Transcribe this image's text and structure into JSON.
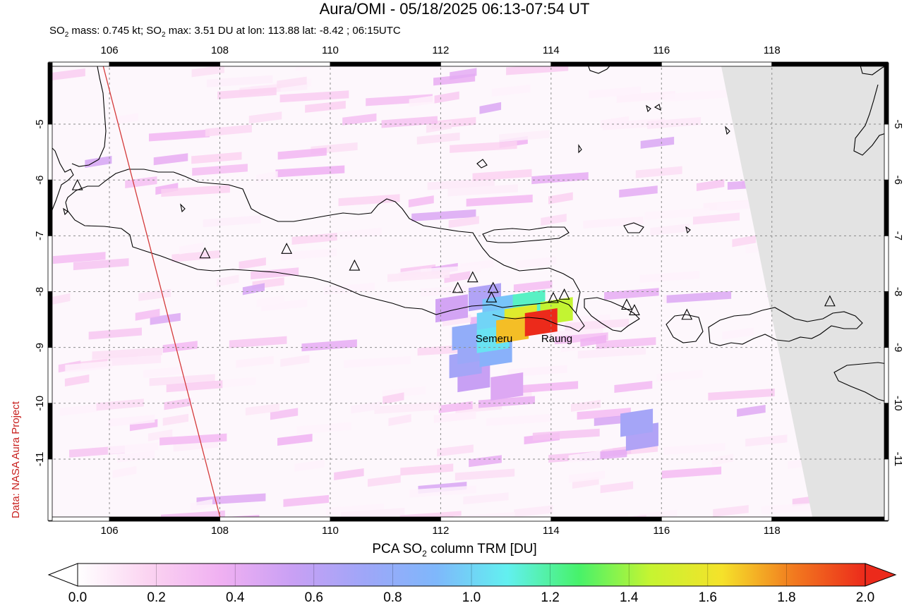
{
  "header": {
    "title": "Aura/OMI - 05/18/2025 06:13-07:54 UT",
    "subtitle_parts": [
      "SO",
      "2",
      " mass: 0.745 kt; SO",
      "2",
      " max: 3.51 DU at lon: 113.88 lat: -8.42 ; 06:15UTC"
    ]
  },
  "credit": "Data: NASA Aura Project",
  "map": {
    "lon_range": [
      104.9,
      120.1
    ],
    "lat_range": [
      -12.1,
      -3.9
    ],
    "lon_ticks": [
      "106",
      "108",
      "110",
      "112",
      "114",
      "116",
      "118"
    ],
    "lat_ticks": [
      "-5",
      "-6",
      "-7",
      "-8",
      "-9",
      "-10",
      "-11"
    ],
    "grid": "dashed",
    "no_data_region_color": "#e3e3e3",
    "coastline_color": "#000000",
    "orbit_edge_color": "#d43a3a",
    "volcano_labels": [
      {
        "name": "Semeru",
        "lon": 112.92,
        "lat": -8.11
      },
      {
        "name": "Raung",
        "lon": 114.04,
        "lat": -8.12
      }
    ],
    "volcano_markers": [
      {
        "lon": 105.42,
        "lat": -6.1
      },
      {
        "lon": 107.73,
        "lat": -7.32
      },
      {
        "lon": 109.21,
        "lat": -7.24
      },
      {
        "lon": 110.44,
        "lat": -7.54
      },
      {
        "lon": 112.31,
        "lat": -7.94
      },
      {
        "lon": 112.58,
        "lat": -7.75
      },
      {
        "lon": 112.95,
        "lat": -7.94
      },
      {
        "lon": 112.92,
        "lat": -8.11
      },
      {
        "lon": 114.04,
        "lat": -8.12
      },
      {
        "lon": 114.24,
        "lat": -8.06
      },
      {
        "lon": 115.37,
        "lat": -8.24
      },
      {
        "lon": 115.51,
        "lat": -8.34
      },
      {
        "lon": 116.46,
        "lat": -8.42
      },
      {
        "lon": 119.05,
        "lat": -8.18
      }
    ],
    "so2_pixels": [
      {
        "lon": 113.82,
        "lat": -8.55,
        "du": 2.0
      },
      {
        "lon": 113.45,
        "lat": -8.48,
        "du": 1.55
      },
      {
        "lon": 113.3,
        "lat": -8.68,
        "du": 1.7
      },
      {
        "lon": 114.1,
        "lat": -8.35,
        "du": 1.45
      },
      {
        "lon": 113.6,
        "lat": -8.22,
        "du": 1.15
      },
      {
        "lon": 112.95,
        "lat": -8.55,
        "du": 1.0
      },
      {
        "lon": 112.95,
        "lat": -8.85,
        "du": 1.05
      },
      {
        "lon": 113.05,
        "lat": -8.3,
        "du": 0.95
      },
      {
        "lon": 112.5,
        "lat": -8.8,
        "du": 0.8
      },
      {
        "lon": 112.6,
        "lat": -9.05,
        "du": 0.75
      },
      {
        "lon": 112.45,
        "lat": -9.3,
        "du": 0.7
      },
      {
        "lon": 113.0,
        "lat": -9.1,
        "du": 0.85
      },
      {
        "lon": 112.8,
        "lat": -8.1,
        "du": 0.65
      },
      {
        "lon": 112.2,
        "lat": -8.3,
        "du": 0.5
      },
      {
        "lon": 112.6,
        "lat": -9.55,
        "du": 0.55
      },
      {
        "lon": 113.2,
        "lat": -9.7,
        "du": 0.45
      },
      {
        "lon": 115.55,
        "lat": -10.35,
        "du": 0.7
      },
      {
        "lon": 115.65,
        "lat": -10.6,
        "du": 0.65
      }
    ]
  },
  "colorbar": {
    "title_parts": [
      "PCA SO",
      "2",
      " column TRM [DU]"
    ],
    "ticks": [
      "0.0",
      "0.2",
      "0.4",
      "0.6",
      "0.8",
      "1.0",
      "1.2",
      "1.4",
      "1.6",
      "1.8",
      "2.0"
    ],
    "range": [
      0.0,
      2.0
    ],
    "colors": [
      "#ffffff",
      "#fbd3f1",
      "#f0b0f2",
      "#c9a0f4",
      "#9fa6f8",
      "#7fb7fb",
      "#62f0f0",
      "#47f26a",
      "#c6f431",
      "#f5e22a",
      "#f27a1f",
      "#ec2a1b"
    ]
  }
}
